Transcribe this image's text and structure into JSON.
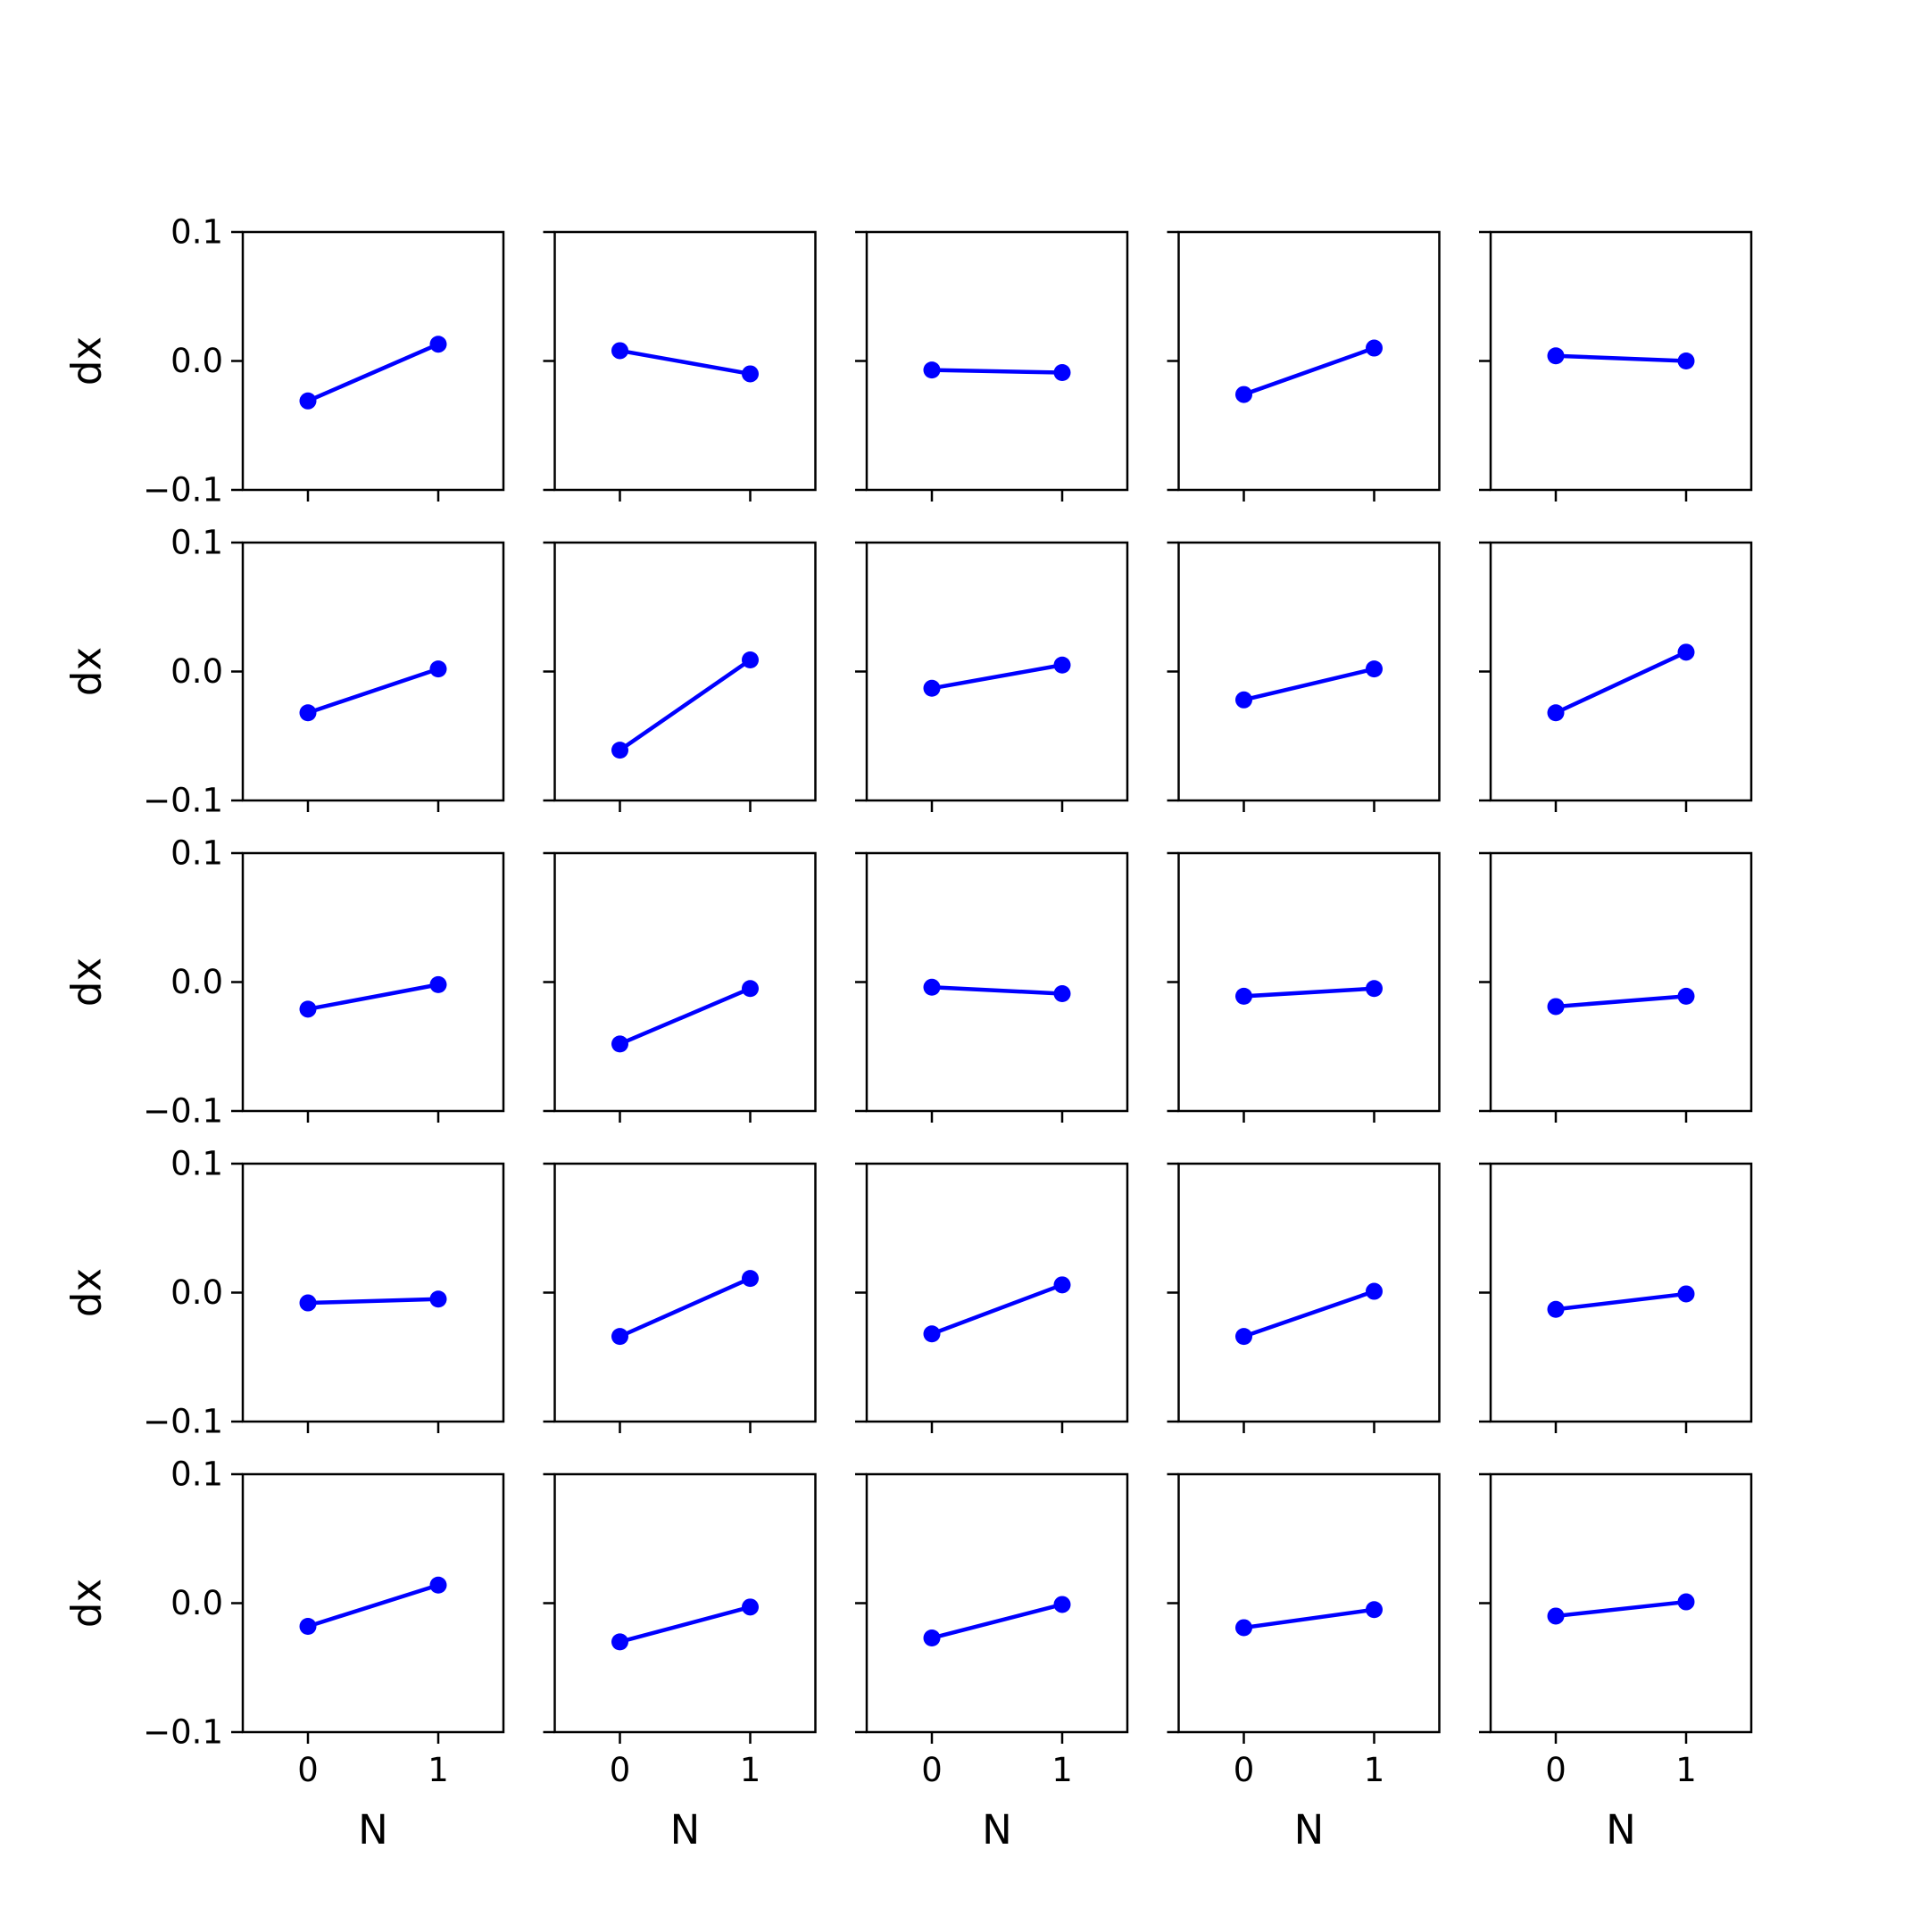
{
  "chart_data": {
    "type": "line",
    "layout": {
      "rows": 5,
      "cols": 5
    },
    "xlabel": "N",
    "ylabel": "dx",
    "x": [
      0,
      1
    ],
    "x_ticks": [
      "0",
      "1"
    ],
    "xlim": [
      -0.5,
      1.5
    ],
    "ylim": [
      -0.1,
      0.1
    ],
    "y_ticks": [
      "−0.1",
      "0.0",
      "0.1"
    ],
    "y_tick_values": [
      -0.1,
      0.0,
      0.1
    ],
    "grid": false,
    "series_color": "#0000ff",
    "panels": [
      [
        [
          -0.031,
          0.013
        ],
        [
          0.008,
          -0.01
        ],
        [
          -0.007,
          -0.009
        ],
        [
          -0.026,
          0.01
        ],
        [
          0.004,
          0.0
        ]
      ],
      [
        [
          -0.032,
          0.002
        ],
        [
          -0.061,
          0.009
        ],
        [
          -0.013,
          0.005
        ],
        [
          -0.022,
          0.002
        ],
        [
          -0.032,
          0.015
        ]
      ],
      [
        [
          -0.021,
          -0.002
        ],
        [
          -0.048,
          -0.005
        ],
        [
          -0.004,
          -0.009
        ],
        [
          -0.011,
          -0.005
        ],
        [
          -0.019,
          -0.011
        ]
      ],
      [
        [
          -0.008,
          -0.005
        ],
        [
          -0.034,
          0.011
        ],
        [
          -0.032,
          0.006
        ],
        [
          -0.034,
          0.001
        ],
        [
          -0.013,
          -0.001
        ]
      ],
      [
        [
          -0.018,
          0.014
        ],
        [
          -0.03,
          -0.003
        ],
        [
          -0.027,
          -0.001
        ],
        [
          -0.019,
          -0.005
        ],
        [
          -0.01,
          0.001
        ]
      ]
    ]
  }
}
